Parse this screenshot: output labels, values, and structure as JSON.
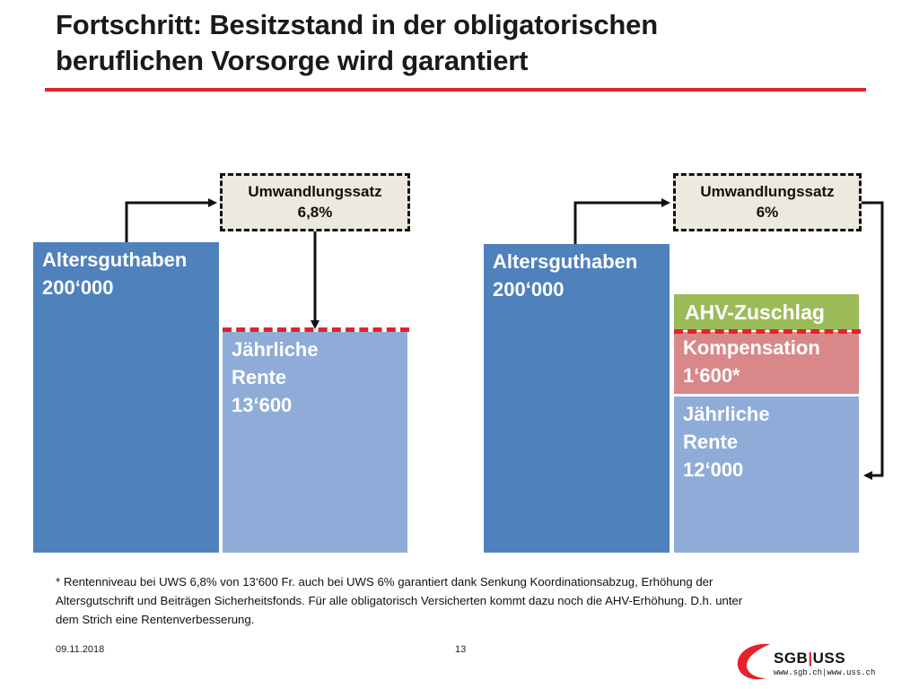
{
  "slide": {
    "title_line1": "Fortschritt: Besitzstand in der obligatorischen",
    "title_line2": "beruflichen Vorsorge wird garantiert",
    "accent_color": "#e3222b"
  },
  "left_scenario": {
    "conversion_rate_label": "Umwandlungssatz",
    "conversion_rate_value": "6,8%",
    "capital_label": "Altersguthaben",
    "capital_value": "200‘000",
    "pension_label_1": "Jährliche",
    "pension_label_2": "Rente",
    "pension_value": "13‘600"
  },
  "right_scenario": {
    "conversion_rate_label": "Umwandlungssatz",
    "conversion_rate_value": "6%",
    "capital_label": "Altersguthaben",
    "capital_value": "200‘000",
    "ahv_label": "AHV-Zuschlag",
    "compensation_label": "Kompensation",
    "compensation_value": "1‘600*",
    "pension_label_1": "Jährliche",
    "pension_label_2": "Rente",
    "pension_value": "12‘000"
  },
  "colors": {
    "capital": "#4f81bd",
    "pension": "#8eacd7",
    "ahv": "#9bbb59",
    "compensation": "#d9888a"
  },
  "footnote": {
    "marker": "*",
    "line1": "Rentenniveau bei UWS 6,8% von 13‘600 Fr. auch bei UWS 6% garantiert dank Senkung Koordinationsabzug, Erhöhung der",
    "line2": "Altersgutschrift und Beiträgen Sicherheitsfonds. Für alle obligatorisch Versicherten kommt dazu noch die AHV-Erhöhung. D.h. unter",
    "line3": "dem Strich eine Rentenverbesserung."
  },
  "footer": {
    "date": "09.11.2018",
    "page": "13",
    "logo_left": "SGB",
    "logo_sep": "|",
    "logo_right": "USS",
    "logo_url": "www.sgb.ch|www.uss.ch"
  }
}
